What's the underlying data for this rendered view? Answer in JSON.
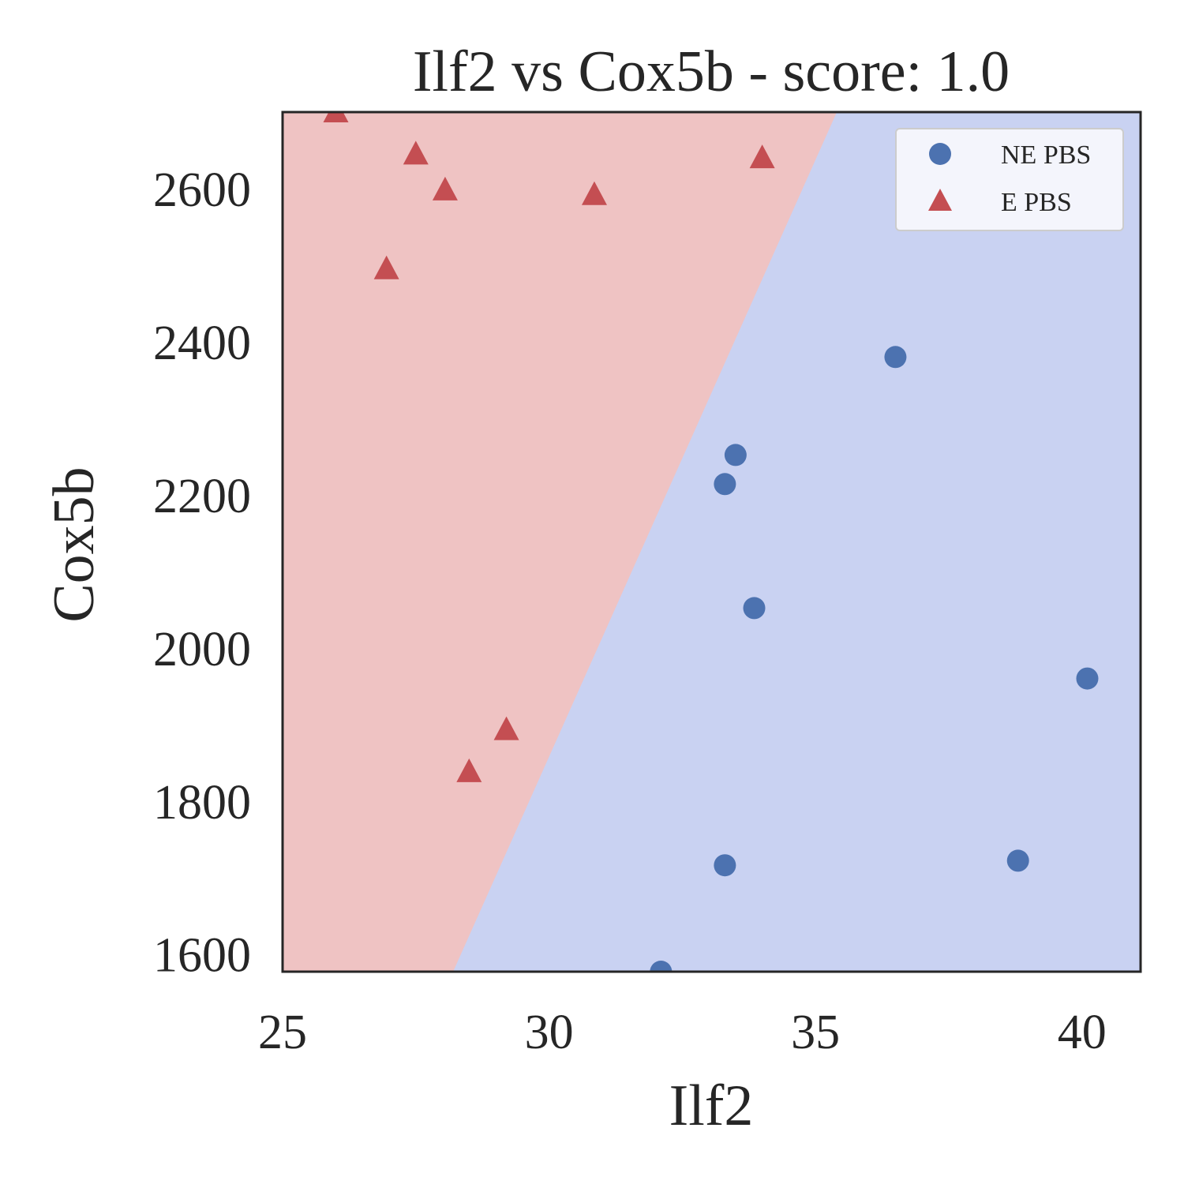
{
  "chart_data": {
    "type": "scatter",
    "title": "Ilf2 vs Cox5b - score: 1.0",
    "xlabel": "Ilf2",
    "ylabel": "Cox5b",
    "xlim": [
      25,
      41.1
    ],
    "ylim": [
      1577,
      2700
    ],
    "xticks": [
      "25",
      "30",
      "35",
      "40"
    ],
    "yticks": [
      "1600",
      "1800",
      "2000",
      "2200",
      "2400",
      "2600"
    ],
    "grid": false,
    "legend_position": "top-right",
    "decision_boundary": {
      "points": [
        [
          28.2,
          1577
        ],
        [
          35.4,
          2700
        ]
      ],
      "left_region_class": "E PBS",
      "right_region_class": "NE PBS",
      "left_region_color": "#efc3c3",
      "right_region_color": "#c9d2f2"
    },
    "series": [
      {
        "name": "NE PBS",
        "marker": "circle",
        "color": "#4c72b0",
        "points": [
          [
            36.5,
            2380
          ],
          [
            33.5,
            2252
          ],
          [
            33.3,
            2214
          ],
          [
            33.85,
            2052
          ],
          [
            40.1,
            1960
          ],
          [
            38.8,
            1722
          ],
          [
            33.3,
            1716
          ],
          [
            32.1,
            1577
          ]
        ]
      },
      {
        "name": "E PBS",
        "marker": "triangle",
        "color": "#c44e52",
        "points": [
          [
            26.0,
            2700
          ],
          [
            27.5,
            2645
          ],
          [
            28.05,
            2598
          ],
          [
            30.85,
            2592
          ],
          [
            34.0,
            2640
          ],
          [
            26.95,
            2495
          ],
          [
            29.2,
            1893
          ],
          [
            28.5,
            1838
          ]
        ]
      }
    ]
  }
}
